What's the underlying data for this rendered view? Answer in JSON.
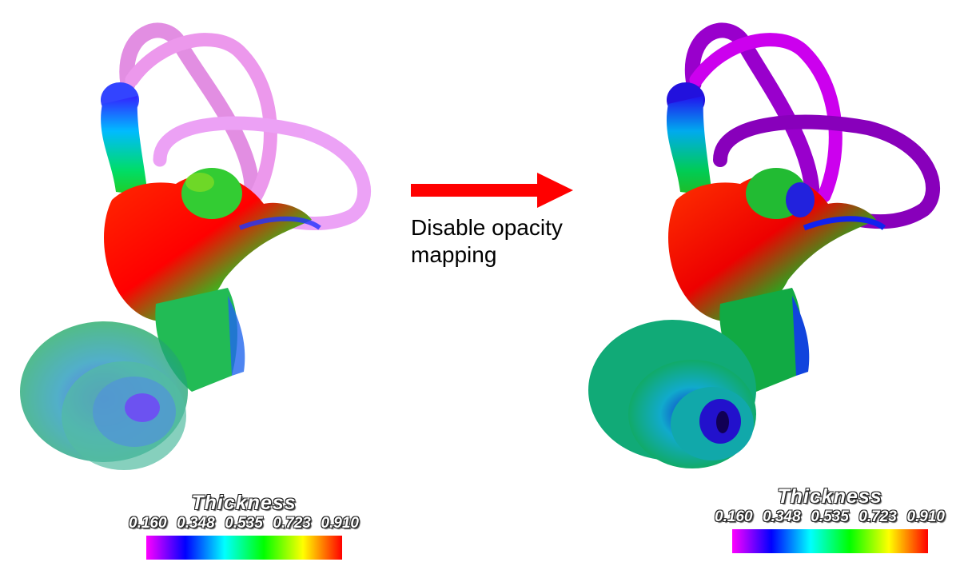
{
  "legend": {
    "title": "Thickness",
    "ticks": [
      "0.160",
      "0.348",
      "0.535",
      "0.723",
      "0.910"
    ],
    "gradient": [
      "#ff00ff",
      "#0000ff",
      "#00ffff",
      "#00ff00",
      "#ffff00",
      "#ff0000"
    ]
  },
  "caption": {
    "line1": "Disable opacity",
    "line2": "mapping"
  },
  "colors": {
    "arrow": "#ff0000"
  }
}
